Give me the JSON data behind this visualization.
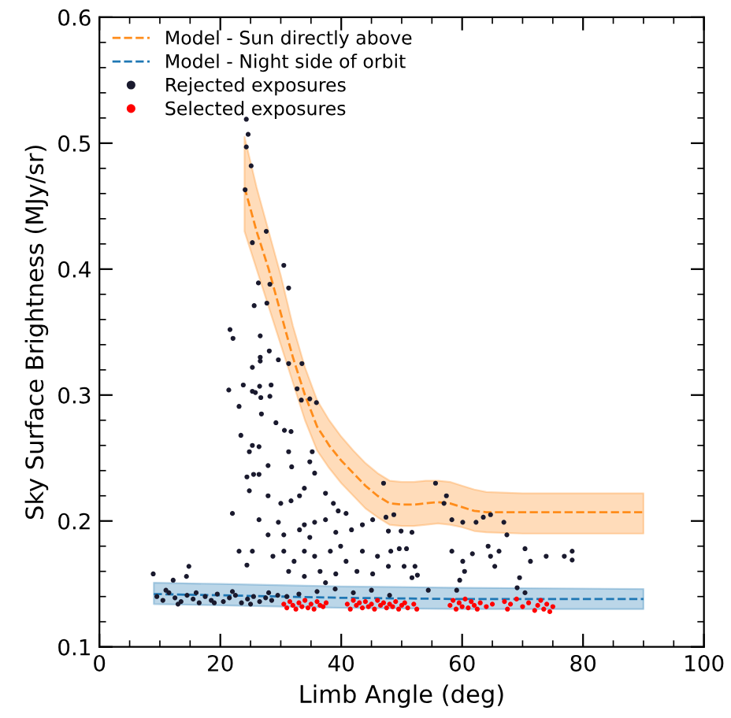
{
  "chart_data": {
    "type": "scatter",
    "xlabel": "Limb Angle (deg)",
    "ylabel": "Sky Surface Brightness (MJy/sr)",
    "xlim": [
      0,
      100
    ],
    "ylim": [
      0.1,
      0.6
    ],
    "xticks": [
      0,
      {
        "value": 5,
        "label": null
      },
      20,
      {
        "value": 10,
        "label": null
      },
      {
        "value": 15,
        "label": null
      },
      {
        "value": 25,
        "label": null
      },
      {
        "value": 30,
        "label": null
      },
      {
        "value": 35,
        "label": null
      },
      40,
      {
        "value": 45,
        "label": null
      },
      {
        "value": 50,
        "label": null
      },
      {
        "value": 55,
        "label": null
      },
      60,
      {
        "value": 65,
        "label": null
      },
      {
        "value": 70,
        "label": null
      },
      {
        "value": 75,
        "label": null
      },
      80,
      {
        "value": 85,
        "label": null
      },
      {
        "value": 90,
        "label": null
      },
      {
        "value": 95,
        "label": null
      },
      100
    ],
    "yticks": [
      0.1,
      {
        "value": 0.12,
        "label": null
      },
      {
        "value": 0.14,
        "label": null
      },
      {
        "value": 0.16,
        "label": null
      },
      {
        "value": 0.18,
        "label": null
      },
      0.2,
      {
        "value": 0.22,
        "label": null
      },
      {
        "value": 0.24,
        "label": null
      },
      {
        "value": 0.26,
        "label": null
      },
      {
        "value": 0.28,
        "label": null
      },
      0.3,
      {
        "value": 0.32,
        "label": null
      },
      {
        "value": 0.34,
        "label": null
      },
      {
        "value": 0.36,
        "label": null
      },
      {
        "value": 0.38,
        "label": null
      },
      0.4,
      {
        "value": 0.42,
        "label": null
      },
      {
        "value": 0.44,
        "label": null
      },
      {
        "value": 0.46,
        "label": null
      },
      {
        "value": 0.48,
        "label": null
      },
      0.5,
      {
        "value": 0.52,
        "label": null
      },
      {
        "value": 0.54,
        "label": null
      },
      {
        "value": 0.56,
        "label": null
      },
      {
        "value": 0.58,
        "label": null
      },
      0.6
    ],
    "grid": false,
    "legend": "top left",
    "series": [
      {
        "name": "Model - Sun directly above",
        "type": "line",
        "line_style": "dashed",
        "marker": "none",
        "color": "#ff8c1a",
        "x": [
          24,
          26,
          28,
          30,
          32,
          34,
          36,
          38,
          40,
          42,
          44,
          46,
          48,
          50,
          52,
          54,
          56,
          58,
          60,
          62,
          64,
          70,
          90
        ],
        "values": [
          0.465,
          0.43,
          0.4,
          0.365,
          0.33,
          0.3,
          0.275,
          0.26,
          0.248,
          0.238,
          0.228,
          0.22,
          0.214,
          0.213,
          0.213,
          0.214,
          0.215,
          0.214,
          0.211,
          0.208,
          0.207,
          0.207,
          0.207
        ],
        "lower": [
          0.43,
          0.4,
          0.37,
          0.34,
          0.31,
          0.28,
          0.256,
          0.242,
          0.23,
          0.22,
          0.21,
          0.203,
          0.197,
          0.196,
          0.196,
          0.197,
          0.198,
          0.197,
          0.195,
          0.192,
          0.191,
          0.19,
          0.19
        ],
        "upper": [
          0.505,
          0.465,
          0.43,
          0.395,
          0.355,
          0.322,
          0.296,
          0.28,
          0.267,
          0.256,
          0.246,
          0.238,
          0.232,
          0.231,
          0.231,
          0.232,
          0.232,
          0.231,
          0.228,
          0.225,
          0.223,
          0.222,
          0.222
        ]
      },
      {
        "name": "Model - Night side of orbit",
        "type": "line",
        "line_style": "dashed",
        "marker": "none",
        "color": "#1f77b4",
        "x": [
          9,
          20,
          40,
          60,
          90
        ],
        "values": [
          0.142,
          0.141,
          0.139,
          0.138,
          0.138
        ],
        "lower": [
          0.134,
          0.133,
          0.131,
          0.13,
          0.13
        ],
        "upper": [
          0.151,
          0.15,
          0.148,
          0.147,
          0.146
        ]
      },
      {
        "name": "Rejected exposures",
        "marker": "circle",
        "color": "#1a1a2e",
        "x": [
          24.3,
          24.6,
          24.3,
          25.1,
          24.1,
          27.6,
          25.3,
          30.5,
          31.3,
          26.3,
          28.2,
          25.6,
          27.7,
          21.6,
          22.1,
          26.6,
          28.1,
          26.6,
          29.6,
          25.3,
          26.6,
          31.3,
          33.5,
          21.4,
          23.8,
          25.3,
          26.5,
          28.4,
          25.8,
          26.7,
          28.2,
          32.7,
          33.4,
          34.8,
          35.9,
          23.1,
          26.8,
          23.4,
          25.3,
          26.4,
          24.8,
          29.2,
          30.6,
          31.7,
          31.3,
          31.8,
          27.9,
          24.4,
          25.5,
          26.4,
          24.8,
          22.0,
          27.9,
          30.0,
          31.7,
          33.1,
          33.9,
          34.8,
          35.2,
          35.6,
          37.4,
          38.7,
          39.5,
          40.8,
          29.6,
          33.9,
          35.6,
          37.4,
          26.4,
          27.9,
          30.5,
          33.1,
          34.8,
          39.1,
          41.7,
          43.5,
          45.2,
          47.4,
          23.1,
          25.3,
          24.4,
          28.7,
          30.5,
          32.2,
          33.9,
          35.6,
          38.2,
          39.9,
          40.8,
          43.5,
          46.0,
          48.2,
          31.3,
          33.9,
          36.5,
          39.1,
          42.6,
          45.2,
          47.8,
          37.4,
          14.8,
          14.4,
          8.9,
          12.2,
          47.0,
          55.6,
          57.4,
          57.0,
          58.3,
          60.1,
          62.3,
          63.5,
          64.7,
          66.9,
          67.4,
          48.7,
          47.8,
          49.9,
          51.7,
          49.6,
          50.8,
          50.4,
          52.2,
          51.7,
          52.6,
          54.4,
          58.3,
          60.1,
          61.7,
          60.4,
          59.6,
          59.1,
          64.3,
          64.7,
          66.1,
          65.4,
          69.5,
          69.1,
          70.4,
          71.3,
          70.4,
          73.9,
          76.9,
          78.2,
          78.2,
          9.5,
          10.5,
          11.5,
          12.5,
          13.5,
          14.5,
          15.5,
          16.5,
          17.5,
          18.5,
          19.5,
          20.5,
          21.5,
          22.5,
          23.5,
          24.5,
          25.5,
          26.5,
          27.5,
          28.5,
          29.5,
          11,
          13,
          16,
          19,
          22,
          25,
          28,
          31,
          33,
          36,
          39,
          42,
          45,
          48
        ],
        "values": [
          0.519,
          0.507,
          0.497,
          0.482,
          0.463,
          0.43,
          0.421,
          0.403,
          0.385,
          0.389,
          0.388,
          0.371,
          0.373,
          0.352,
          0.345,
          0.347,
          0.335,
          0.33,
          0.328,
          0.322,
          0.327,
          0.325,
          0.325,
          0.304,
          0.308,
          0.303,
          0.307,
          0.308,
          0.302,
          0.298,
          0.299,
          0.305,
          0.296,
          0.297,
          0.294,
          0.291,
          0.285,
          0.268,
          0.26,
          0.259,
          0.255,
          0.278,
          0.272,
          0.271,
          0.255,
          0.243,
          0.244,
          0.235,
          0.237,
          0.237,
          0.224,
          0.206,
          0.22,
          0.214,
          0.216,
          0.22,
          0.226,
          0.247,
          0.255,
          0.238,
          0.222,
          0.214,
          0.208,
          0.206,
          0.199,
          0.197,
          0.199,
          0.201,
          0.201,
          0.189,
          0.189,
          0.193,
          0.187,
          0.191,
          0.193,
          0.197,
          0.201,
          0.203,
          0.176,
          0.176,
          0.165,
          0.172,
          0.176,
          0.168,
          0.176,
          0.172,
          0.176,
          0.18,
          0.168,
          0.176,
          0.172,
          0.176,
          0.16,
          0.156,
          0.16,
          0.158,
          0.16,
          0.158,
          0.164,
          0.151,
          0.164,
          0.156,
          0.158,
          0.153,
          0.23,
          0.23,
          0.22,
          0.214,
          0.201,
          0.199,
          0.199,
          0.203,
          0.205,
          0.199,
          0.189,
          0.205,
          0.192,
          0.192,
          0.191,
          0.178,
          0.178,
          0.164,
          0.164,
          0.155,
          0.157,
          0.145,
          0.176,
          0.168,
          0.174,
          0.16,
          0.153,
          0.145,
          0.18,
          0.172,
          0.176,
          0.164,
          0.155,
          0.147,
          0.178,
          0.168,
          0.143,
          0.172,
          0.172,
          0.169,
          0.176,
          0.14,
          0.137,
          0.143,
          0.139,
          0.136,
          0.141,
          0.138,
          0.135,
          0.14,
          0.137,
          0.142,
          0.136,
          0.139,
          0.141,
          0.135,
          0.138,
          0.14,
          0.136,
          0.139,
          0.137,
          0.141,
          0.145,
          0.134,
          0.143,
          0.135,
          0.144,
          0.134,
          0.143,
          0.14,
          0.142,
          0.144,
          0.146,
          0.143,
          0.145,
          0.141
        ]
      },
      {
        "name": "Selected exposures",
        "marker": "circle",
        "color": "#ff0000",
        "x": [
          30.5,
          31,
          31.5,
          32,
          32.5,
          33,
          33.5,
          34,
          34.5,
          35,
          35.5,
          36,
          36.5,
          37,
          37.5,
          41,
          41.5,
          42,
          42.5,
          43,
          43.5,
          44,
          44.5,
          45,
          45.5,
          46,
          46.5,
          47,
          47.5,
          48,
          48.5,
          49,
          49.5,
          50,
          50.5,
          51,
          52,
          52.5,
          58,
          58.5,
          59,
          59.5,
          60,
          60.5,
          61,
          61.5,
          62,
          62.5,
          63,
          64,
          65,
          67,
          67.5,
          68,
          69,
          70,
          71,
          72,
          72.5,
          73,
          73.5,
          74,
          74.5,
          75
        ],
        "values": [
          0.134,
          0.131,
          0.136,
          0.133,
          0.13,
          0.135,
          0.132,
          0.137,
          0.131,
          0.134,
          0.13,
          0.136,
          0.133,
          0.132,
          0.135,
          0.134,
          0.13,
          0.137,
          0.133,
          0.135,
          0.131,
          0.136,
          0.132,
          0.134,
          0.13,
          0.137,
          0.133,
          0.135,
          0.131,
          0.134,
          0.132,
          0.136,
          0.13,
          0.133,
          0.135,
          0.131,
          0.134,
          0.13,
          0.133,
          0.137,
          0.13,
          0.135,
          0.132,
          0.138,
          0.131,
          0.136,
          0.133,
          0.13,
          0.135,
          0.132,
          0.134,
          0.136,
          0.13,
          0.134,
          0.138,
          0.132,
          0.135,
          0.129,
          0.133,
          0.137,
          0.13,
          0.134,
          0.128,
          0.132
        ]
      }
    ]
  }
}
